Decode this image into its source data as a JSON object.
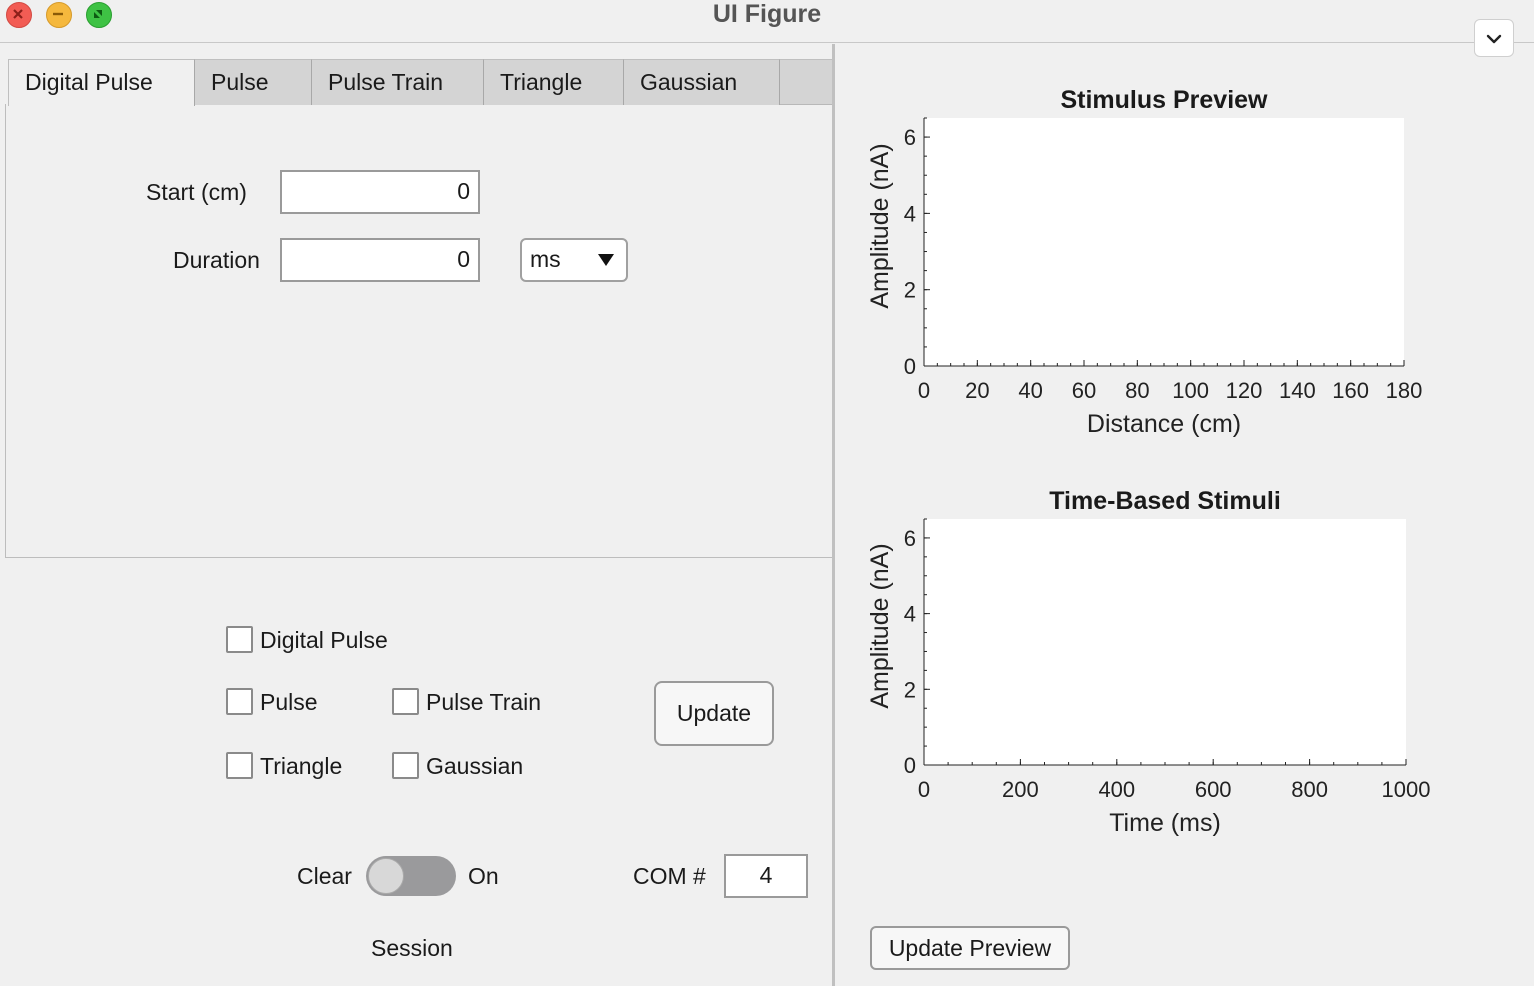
{
  "window": {
    "title": "UI Figure"
  },
  "tabs": [
    {
      "label": "Digital Pulse",
      "active": true
    },
    {
      "label": "Pulse",
      "active": false
    },
    {
      "label": "Pulse Train",
      "active": false
    },
    {
      "label": "Triangle",
      "active": false
    },
    {
      "label": "Gaussian",
      "active": false
    }
  ],
  "form": {
    "start_label": "Start (cm)",
    "start_value": "0",
    "duration_label": "Duration",
    "duration_value": "0",
    "duration_unit": "ms"
  },
  "checkboxes": {
    "digital_pulse": "Digital Pulse",
    "pulse": "Pulse",
    "pulse_train": "Pulse Train",
    "triangle": "Triangle",
    "gaussian": "Gaussian"
  },
  "buttons": {
    "update": "Update",
    "update_preview": "Update Preview"
  },
  "session": {
    "clear_label": "Clear",
    "on_label": "On",
    "session_label": "Session",
    "toggle_on": false
  },
  "com": {
    "label": "COM #",
    "value": "4"
  },
  "chart_data": [
    {
      "type": "line",
      "title": "Stimulus Preview",
      "xlabel": "Distance (cm)",
      "ylabel": "Amplitude (nA)",
      "xlim": [
        0,
        180
      ],
      "ylim": [
        0,
        6.5
      ],
      "xticks": [
        0,
        20,
        40,
        60,
        80,
        100,
        120,
        140,
        160,
        180
      ],
      "yticks": [
        0,
        2,
        4,
        6
      ],
      "series": []
    },
    {
      "type": "line",
      "title": "Time-Based Stimuli",
      "xlabel": "Time (ms)",
      "ylabel": "Amplitude (nA)",
      "xlim": [
        0,
        1000
      ],
      "ylim": [
        0,
        6.5
      ],
      "xticks": [
        0,
        200,
        400,
        600,
        800,
        1000
      ],
      "yticks": [
        0,
        2,
        4,
        6
      ],
      "series": []
    }
  ],
  "icons": {
    "close": "close-icon",
    "minimize": "minimize-icon",
    "zoom": "zoom-icon",
    "collapse": "chevron-down-icon",
    "dropdown": "caret-down-icon"
  },
  "colors": {
    "close": "#f25c54",
    "minimize": "#f5b83d",
    "zoom": "#3ec244",
    "panel": "#f0f0f0",
    "toggle": "#9a9a9c"
  }
}
